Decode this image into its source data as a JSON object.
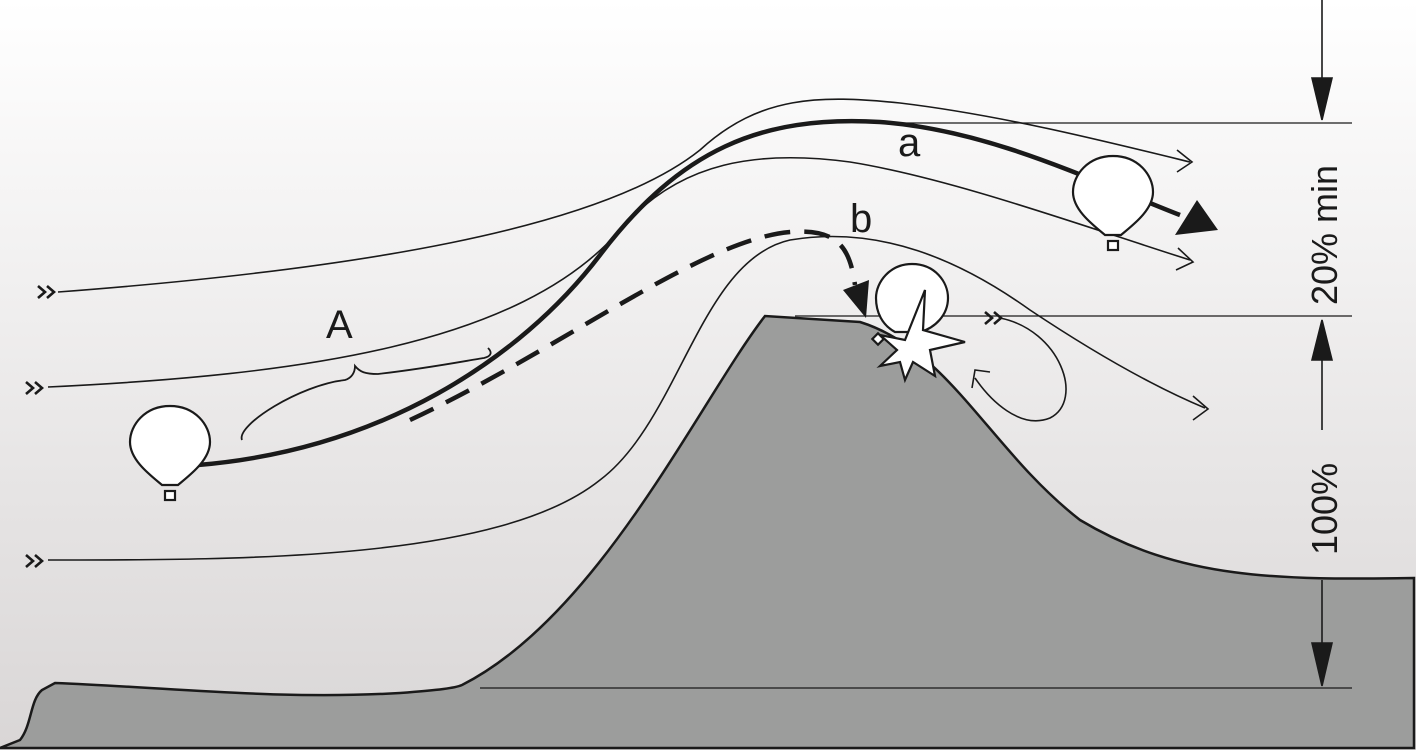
{
  "labels": {
    "path_a": "a",
    "path_b": "b",
    "zone_A": "A",
    "height_top": "20% min",
    "height_bottom": "100%"
  },
  "colors": {
    "sky_top": "#ffffff",
    "sky_bottom": "#d9d6d6",
    "hill": "#9c9d9c",
    "line": "#1a1a1a",
    "balloon": "#ffffff"
  },
  "icons": {
    "wind_marker": "double-chevron-right-icon",
    "balloon": "hot-air-balloon-icon",
    "crash": "impact-star-icon"
  }
}
